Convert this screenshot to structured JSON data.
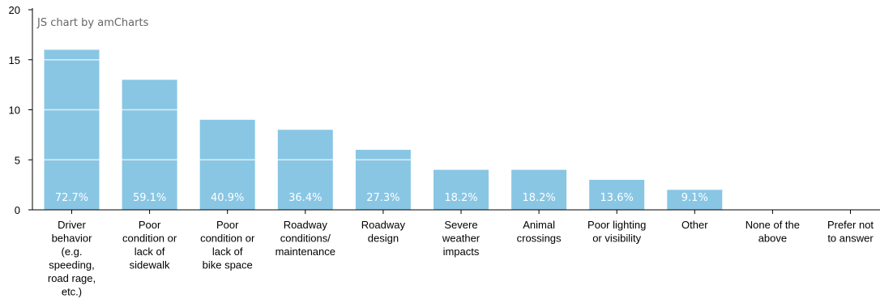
{
  "credit": "JS chart by amCharts",
  "chart_data": {
    "type": "bar",
    "categories": [
      [
        "Driver",
        "behavior",
        "(e.g.",
        "speeding,",
        "road rage,",
        "etc.)"
      ],
      [
        "Poor",
        "condition or",
        "lack of",
        "sidewalk"
      ],
      [
        "Poor",
        "condition or",
        "lack of",
        "bike space"
      ],
      [
        "Roadway",
        "conditions/",
        "maintenance"
      ],
      [
        "Roadway",
        "design"
      ],
      [
        "Severe",
        "weather",
        "impacts"
      ],
      [
        "Animal",
        "crossings"
      ],
      [
        "Poor lighting",
        "or visibility"
      ],
      [
        "Other"
      ],
      [
        "None of the",
        "above"
      ],
      [
        "Prefer not",
        "to answer"
      ]
    ],
    "values": [
      16,
      13,
      9,
      8,
      6,
      4,
      4,
      3,
      2,
      0,
      0
    ],
    "data_labels": [
      "72.7%",
      "59.1%",
      "40.9%",
      "36.4%",
      "27.3%",
      "18.2%",
      "18.2%",
      "13.6%",
      "9.1%",
      "",
      ""
    ],
    "ylim": [
      0,
      20
    ],
    "yticks": [
      0,
      5,
      10,
      15,
      20
    ],
    "grid": true,
    "colors": {
      "bar": "#89c6e4",
      "grid": "#ffffff",
      "axis": "#000000",
      "label": "#ffffff"
    }
  }
}
